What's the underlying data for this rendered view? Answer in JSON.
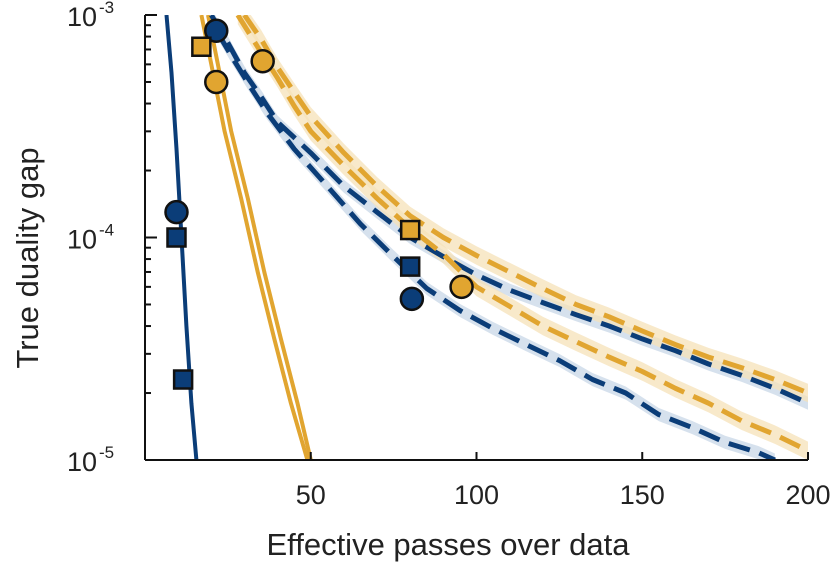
{
  "chart_data": {
    "type": "line",
    "xlabel": "Effective passes over data",
    "ylabel": "True duality gap",
    "x_scale": "linear",
    "y_scale": "log",
    "xlim": [
      0,
      200
    ],
    "ylim": [
      1e-05,
      0.001
    ],
    "x_ticks": [
      {
        "value": 50,
        "label": "50"
      },
      {
        "value": 100,
        "label": "100"
      },
      {
        "value": 150,
        "label": "150"
      },
      {
        "value": 200,
        "label": "200"
      }
    ],
    "y_ticks": [
      {
        "value": 0.001,
        "base": "10",
        "exp": "-3"
      },
      {
        "value": 0.0001,
        "base": "10",
        "exp": "-4"
      },
      {
        "value": 1e-05,
        "base": "10",
        "exp": "-5"
      }
    ],
    "colors": {
      "blue": "#0b3d78",
      "orange": "#e1a530",
      "blue_band": "#c8d7e7",
      "orange_band": "#f6e2b8"
    },
    "series": [
      {
        "name": "blue-solid",
        "color": "blue",
        "dash": false,
        "x": [
          6.5,
          8,
          9.5,
          11,
          12.5,
          14,
          15.5
        ],
        "y": [
          0.001,
          0.00055,
          0.00025,
          0.0001,
          4e-05,
          1.8e-05,
          1e-05
        ]
      },
      {
        "name": "orange-solid-a",
        "color": "orange",
        "dash": false,
        "x": [
          17,
          20,
          24,
          29,
          34,
          39,
          44,
          49
        ],
        "y": [
          0.001,
          0.0006,
          0.0003,
          0.00015,
          7e-05,
          3.5e-05,
          1.8e-05,
          1e-05
        ]
      },
      {
        "name": "orange-solid-b",
        "color": "orange",
        "dash": false,
        "x": [
          19,
          22,
          26,
          31,
          36,
          41,
          46,
          50
        ],
        "y": [
          0.001,
          0.0006,
          0.0003,
          0.00015,
          7e-05,
          3.5e-05,
          1.8e-05,
          1e-05
        ]
      },
      {
        "name": "blue-dashed-upper",
        "color": "blue",
        "dash": true,
        "band": 0.07,
        "x": [
          20,
          25,
          30,
          35,
          40,
          50,
          60,
          70,
          80,
          90,
          100,
          110,
          120,
          130,
          140,
          150,
          160,
          170,
          180,
          190,
          200
        ],
        "y": [
          0.001,
          0.00075,
          0.00055,
          0.00043,
          0.00033,
          0.00024,
          0.00017,
          0.00013,
          0.0001,
          8.2e-05,
          6.8e-05,
          5.8e-05,
          5.1e-05,
          4.5e-05,
          4e-05,
          3.5e-05,
          3.1e-05,
          2.7e-05,
          2.4e-05,
          2.1e-05,
          1.8e-05
        ]
      },
      {
        "name": "blue-dashed-lower",
        "color": "blue",
        "dash": true,
        "band": 0.07,
        "x": [
          22,
          27,
          32,
          37,
          45,
          55,
          65,
          75,
          85,
          95,
          105,
          115,
          125,
          135,
          145,
          155,
          165,
          175,
          185,
          190
        ],
        "y": [
          0.00083,
          0.00062,
          0.00047,
          0.00036,
          0.00025,
          0.00017,
          0.000115,
          8.2e-05,
          5.9e-05,
          4.7e-05,
          3.9e-05,
          3.3e-05,
          2.8e-05,
          2.3e-05,
          2e-05,
          1.6e-05,
          1.4e-05,
          1.2e-05,
          1.08e-05,
          1e-05
        ]
      },
      {
        "name": "orange-dashed-upper",
        "color": "orange",
        "dash": true,
        "band": 0.1,
        "x": [
          30,
          35,
          40,
          45,
          50,
          60,
          70,
          80,
          90,
          100,
          110,
          120,
          130,
          140,
          150,
          160,
          170,
          180,
          190,
          200
        ],
        "y": [
          0.001,
          0.00078,
          0.00058,
          0.00045,
          0.00035,
          0.00024,
          0.00017,
          0.000125,
          0.0001,
          8.3e-05,
          7e-05,
          5.9e-05,
          5e-05,
          4.4e-05,
          3.8e-05,
          3.3e-05,
          2.9e-05,
          2.6e-05,
          2.3e-05,
          2e-05
        ]
      },
      {
        "name": "orange-dashed-lower",
        "color": "orange",
        "dash": true,
        "band": 0.1,
        "x": [
          28,
          35,
          40,
          45,
          50,
          60,
          70,
          80,
          90,
          100,
          110,
          120,
          130,
          140,
          150,
          160,
          170,
          180,
          190,
          200
        ],
        "y": [
          0.001,
          0.00068,
          0.00052,
          0.00039,
          0.0003,
          0.00021,
          0.00015,
          0.00011,
          8.4e-05,
          6e-05,
          4.9e-05,
          4e-05,
          3.4e-05,
          2.9e-05,
          2.5e-05,
          2.1e-05,
          1.8e-05,
          1.5e-05,
          1.3e-05,
          1.1e-05
        ]
      }
    ],
    "markers": [
      {
        "shape": "circle",
        "color": "blue",
        "x": 9.5,
        "y": 0.00013
      },
      {
        "shape": "square",
        "color": "blue",
        "x": 9.5,
        "y": 0.0001
      },
      {
        "shape": "square",
        "color": "blue",
        "x": 11.5,
        "y": 2.3e-05
      },
      {
        "shape": "circle",
        "color": "blue",
        "x": 21.5,
        "y": 0.00085
      },
      {
        "shape": "square",
        "color": "orange",
        "x": 17,
        "y": 0.00072
      },
      {
        "shape": "circle",
        "color": "orange",
        "x": 21.5,
        "y": 0.0005
      },
      {
        "shape": "circle",
        "color": "orange",
        "x": 35.5,
        "y": 0.00062
      },
      {
        "shape": "square",
        "color": "orange",
        "x": 80,
        "y": 0.000108
      },
      {
        "shape": "square",
        "color": "blue",
        "x": 80,
        "y": 7.4e-05
      },
      {
        "shape": "circle",
        "color": "blue",
        "x": 80.5,
        "y": 5.3e-05
      },
      {
        "shape": "circle",
        "color": "orange",
        "x": 95.5,
        "y": 6e-05
      }
    ]
  }
}
